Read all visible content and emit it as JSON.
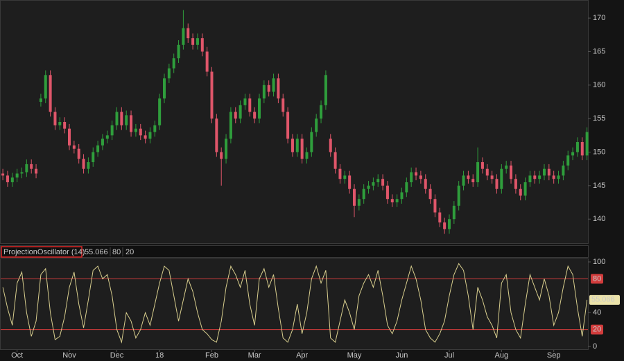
{
  "chart_data": [
    {
      "type": "candlestick",
      "up_color": "#2f9e3c",
      "down_color": "#e0566a",
      "open": [
        146.8,
        146.5,
        145.5,
        146.2,
        146.8,
        147,
        148.2,
        147.5,
        157.5,
        158,
        161.5,
        156,
        154,
        154.5,
        153.5,
        151,
        150.5,
        149,
        147.5,
        148.5,
        150,
        151,
        152,
        152.5,
        154,
        156,
        154,
        155.5,
        153,
        153.5,
        152.5,
        152,
        153,
        154,
        158,
        161,
        162.5,
        164,
        166,
        168.5,
        167,
        166,
        167,
        165,
        162,
        155,
        150,
        149,
        152,
        156,
        155,
        157,
        158,
        156,
        155,
        158,
        160,
        159,
        161,
        158,
        156,
        152,
        150,
        152,
        149,
        150,
        153,
        155,
        157,
        152,
        150,
        147.5,
        146,
        146.5,
        144.5,
        142,
        143,
        144.5,
        145,
        145.5,
        146,
        145,
        143,
        142.5,
        143,
        144,
        145.5,
        147,
        146.5,
        146,
        144.5,
        143,
        141,
        139.5,
        138.5,
        140,
        142,
        145,
        146.5,
        146,
        145.5,
        148.5,
        147.5,
        146.5,
        146,
        144.5,
        147.5,
        148,
        146,
        144.5,
        143.5,
        145.5,
        146.5,
        146,
        146.5,
        147.5,
        146.5,
        146,
        146.5,
        148,
        149.5,
        150,
        151.5,
        149.5
      ],
      "high": [
        147.5,
        147.2,
        146.9,
        147.5,
        147.7,
        148.9,
        148.9,
        148.2,
        158.7,
        162.2,
        162.2,
        156.7,
        155.2,
        155.2,
        154.2,
        151.7,
        151.2,
        149.7,
        149.2,
        150.7,
        151.7,
        152.7,
        153.2,
        154.7,
        156.7,
        156.7,
        156.2,
        156.2,
        154.2,
        154.2,
        153.2,
        153.7,
        154.7,
        158.7,
        161.7,
        163.2,
        164.7,
        166.7,
        171.2,
        169.2,
        167.7,
        167.7,
        167.7,
        165.7,
        162.7,
        155.7,
        150.7,
        152.7,
        156.7,
        156.7,
        157.7,
        158.7,
        158.7,
        156.7,
        158.7,
        160.7,
        160.7,
        161.7,
        161.7,
        158.7,
        156.7,
        152.7,
        152.7,
        152.7,
        150.7,
        153.7,
        155.7,
        157.7,
        162.2,
        152.7,
        150.7,
        148.2,
        147.2,
        147.2,
        145.2,
        143.7,
        145.2,
        145.7,
        146.2,
        146.7,
        146.7,
        145.7,
        143.7,
        143.7,
        144.7,
        146.2,
        147.7,
        147.7,
        147.2,
        146.7,
        145.2,
        143.7,
        141.7,
        140.2,
        140.7,
        142.7,
        145.7,
        147.2,
        147.2,
        146.7,
        150.7,
        149.2,
        148.2,
        147.2,
        146.7,
        148.2,
        148.7,
        148.7,
        146.7,
        145.2,
        146.2,
        147.2,
        147.2,
        147.2,
        148.2,
        148.2,
        147.2,
        147.2,
        148.7,
        150.2,
        150.7,
        152.2,
        152.2,
        153.7
      ],
      "low": [
        145.8,
        144.8,
        144.8,
        145.5,
        146.1,
        146.3,
        146.8,
        146.1,
        156.8,
        157.3,
        155.3,
        153.3,
        153.3,
        152.8,
        150.3,
        149.8,
        148.3,
        146.8,
        146.8,
        147.8,
        149.3,
        150.3,
        151.3,
        151.8,
        153.3,
        153.3,
        153.3,
        152.3,
        152.3,
        151.8,
        151.3,
        151.3,
        152.3,
        153.3,
        157.3,
        160.3,
        161.8,
        163.3,
        165.3,
        166.3,
        165.3,
        165.3,
        164.3,
        161.3,
        154.3,
        149.3,
        145,
        148.3,
        151.3,
        154.3,
        154.3,
        156.3,
        155.3,
        154.3,
        154.3,
        157.3,
        158.3,
        158.3,
        157.3,
        155.3,
        151.3,
        149.3,
        149.3,
        148.3,
        148.3,
        149.3,
        152.3,
        154.3,
        156.3,
        149.3,
        146.8,
        145.3,
        145.3,
        143.8,
        140.3,
        141.3,
        142.3,
        143.8,
        144.3,
        144.8,
        144.3,
        142.3,
        141.8,
        141.8,
        142.3,
        143.3,
        144.8,
        145.8,
        145.3,
        143.8,
        142.3,
        140.3,
        138.8,
        137.8,
        137.8,
        139.3,
        141.3,
        144.3,
        145.3,
        144.8,
        144.8,
        146.8,
        145.8,
        145.3,
        143.8,
        143.8,
        146.8,
        145.3,
        143.8,
        142.8,
        142.8,
        144.8,
        145.3,
        145.3,
        145.8,
        145.8,
        145.3,
        145.3,
        145.8,
        147.3,
        148.8,
        149.3,
        148.8,
        148.8
      ],
      "close": [
        146.5,
        145.5,
        146.2,
        146.8,
        147,
        148.2,
        147.5,
        146.8,
        158,
        161.5,
        156,
        154,
        154.5,
        153.5,
        151,
        150.5,
        149,
        147.5,
        148.5,
        150,
        151,
        152,
        152.5,
        154,
        156,
        154,
        155.5,
        153,
        153.5,
        152.5,
        152,
        153,
        154,
        158,
        161,
        162.5,
        164,
        166,
        168.5,
        167,
        166,
        167,
        165,
        162,
        155,
        150,
        149,
        152,
        156,
        155,
        157,
        158,
        156,
        155,
        158,
        160,
        159,
        161,
        158,
        156,
        152,
        150,
        152,
        149,
        150,
        153,
        155,
        157,
        161.5,
        150,
        147.5,
        146,
        146.5,
        144.5,
        142,
        143,
        144.5,
        145,
        145.5,
        146,
        145,
        143,
        142.5,
        143,
        144,
        145.5,
        147,
        146.5,
        146,
        144.5,
        143,
        141,
        139.5,
        138.5,
        140,
        142,
        145,
        146.5,
        146,
        145.5,
        148.5,
        147.5,
        146.5,
        146,
        144.5,
        147.5,
        148,
        146,
        144.5,
        143.5,
        145.5,
        146.5,
        146,
        146.5,
        147.5,
        146.5,
        146,
        146.5,
        148,
        149.5,
        150,
        151.5,
        149.5,
        153
      ],
      "ylim": [
        136.3,
        172.7
      ],
      "yticks": [
        140,
        145,
        150,
        155,
        160,
        165,
        170
      ],
      "xlim": [
        -0.6,
        123.2
      ],
      "xticks": [
        {
          "value": 3,
          "label": "Oct"
        },
        {
          "value": 14,
          "label": "Nov"
        },
        {
          "value": 24,
          "label": "Dec"
        },
        {
          "value": 33,
          "label": "18"
        },
        {
          "value": 44,
          "label": "Feb"
        },
        {
          "value": 53,
          "label": "Mar"
        },
        {
          "value": 63,
          "label": "Apr"
        },
        {
          "value": 74,
          "label": "May"
        },
        {
          "value": 84,
          "label": "Jun"
        },
        {
          "value": 94,
          "label": "Jul"
        },
        {
          "value": 105,
          "label": "Aug"
        },
        {
          "value": 116,
          "label": "Sep"
        }
      ]
    },
    {
      "type": "line",
      "title": "ProjectionOscillator (14)",
      "color": "#d9cf8e",
      "values": [
        70,
        45,
        25,
        75,
        88,
        40,
        12,
        30,
        85,
        92,
        40,
        8,
        12,
        35,
        70,
        88,
        50,
        22,
        55,
        90,
        95,
        80,
        85,
        60,
        20,
        5,
        40,
        30,
        10,
        20,
        40,
        25,
        50,
        75,
        95,
        90,
        60,
        30,
        55,
        80,
        65,
        40,
        20,
        15,
        8,
        5,
        30,
        70,
        95,
        85,
        70,
        90,
        50,
        25,
        80,
        92,
        70,
        85,
        45,
        10,
        5,
        20,
        50,
        15,
        40,
        80,
        95,
        75,
        90,
        10,
        5,
        30,
        55,
        40,
        20,
        60,
        75,
        85,
        70,
        90,
        60,
        25,
        15,
        30,
        55,
        75,
        95,
        80,
        55,
        20,
        10,
        5,
        15,
        30,
        60,
        85,
        98,
        90,
        60,
        20,
        70,
        55,
        35,
        25,
        10,
        75,
        85,
        40,
        20,
        10,
        50,
        85,
        70,
        55,
        80,
        60,
        25,
        40,
        70,
        95,
        85,
        45,
        12,
        55.066
      ],
      "levels": [
        80,
        20
      ],
      "level_color": "#d23c3c",
      "ylim": [
        -4.1,
        104.1
      ],
      "yticks": [
        0,
        40,
        100
      ]
    }
  ]
}
